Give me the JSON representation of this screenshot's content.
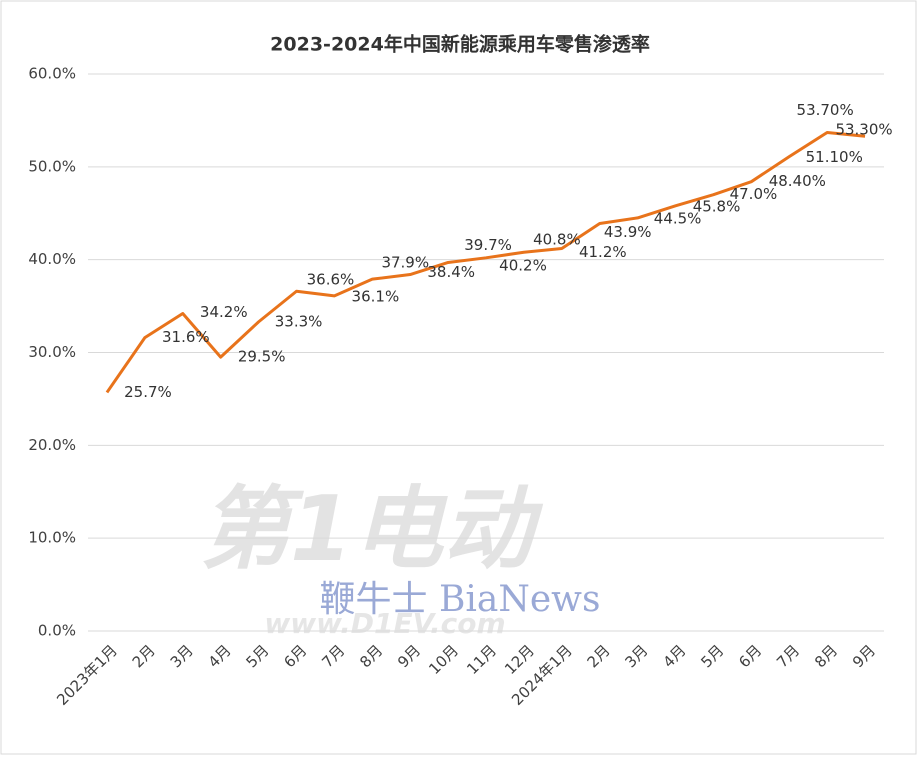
{
  "chart_data": {
    "type": "line",
    "title": "2023-2024年中国新能源乘用车零售渗透率",
    "categories": [
      "2023年1月",
      "2月",
      "3月",
      "4月",
      "5月",
      "6月",
      "7月",
      "8月",
      "9月",
      "10月",
      "11月",
      "12月",
      "2024年1月",
      "2月",
      "3月",
      "4月",
      "5月",
      "6月",
      "7月",
      "8月",
      "9月"
    ],
    "series": [
      {
        "color": "#e8731b",
        "values": [
          25.7,
          31.6,
          34.2,
          29.5,
          33.3,
          36.6,
          36.1,
          37.9,
          38.4,
          39.7,
          40.2,
          40.8,
          41.2,
          43.9,
          44.5,
          45.8,
          47.0,
          48.4,
          51.1,
          53.7,
          53.3
        ],
        "value_labels": [
          "25.7%",
          "31.6%",
          "34.2%",
          "29.5%",
          "33.3%",
          "36.6%",
          "36.1%",
          "37.9%",
          "38.4%",
          "39.7%",
          "40.2%",
          "40.8%",
          "41.2%",
          "43.9%",
          "44.5%",
          "45.8%",
          "47.0%",
          "48.40%",
          "51.10%",
          "53.70%",
          "53.30%"
        ]
      }
    ],
    "ylim": [
      0,
      60
    ],
    "yticks": [
      {
        "value": 0,
        "label": "0.0%"
      },
      {
        "value": 10,
        "label": "10.0%"
      },
      {
        "value": 20,
        "label": "20.0%"
      },
      {
        "value": 30,
        "label": "30.0%"
      },
      {
        "value": 40,
        "label": "40.0%"
      },
      {
        "value": 50,
        "label": "50.0%"
      },
      {
        "value": 60,
        "label": "60.0%"
      }
    ],
    "grid": true,
    "watermark": [
      "第1电动",
      "鞭牛士 BiaNews",
      "www.D1EV.com"
    ]
  }
}
